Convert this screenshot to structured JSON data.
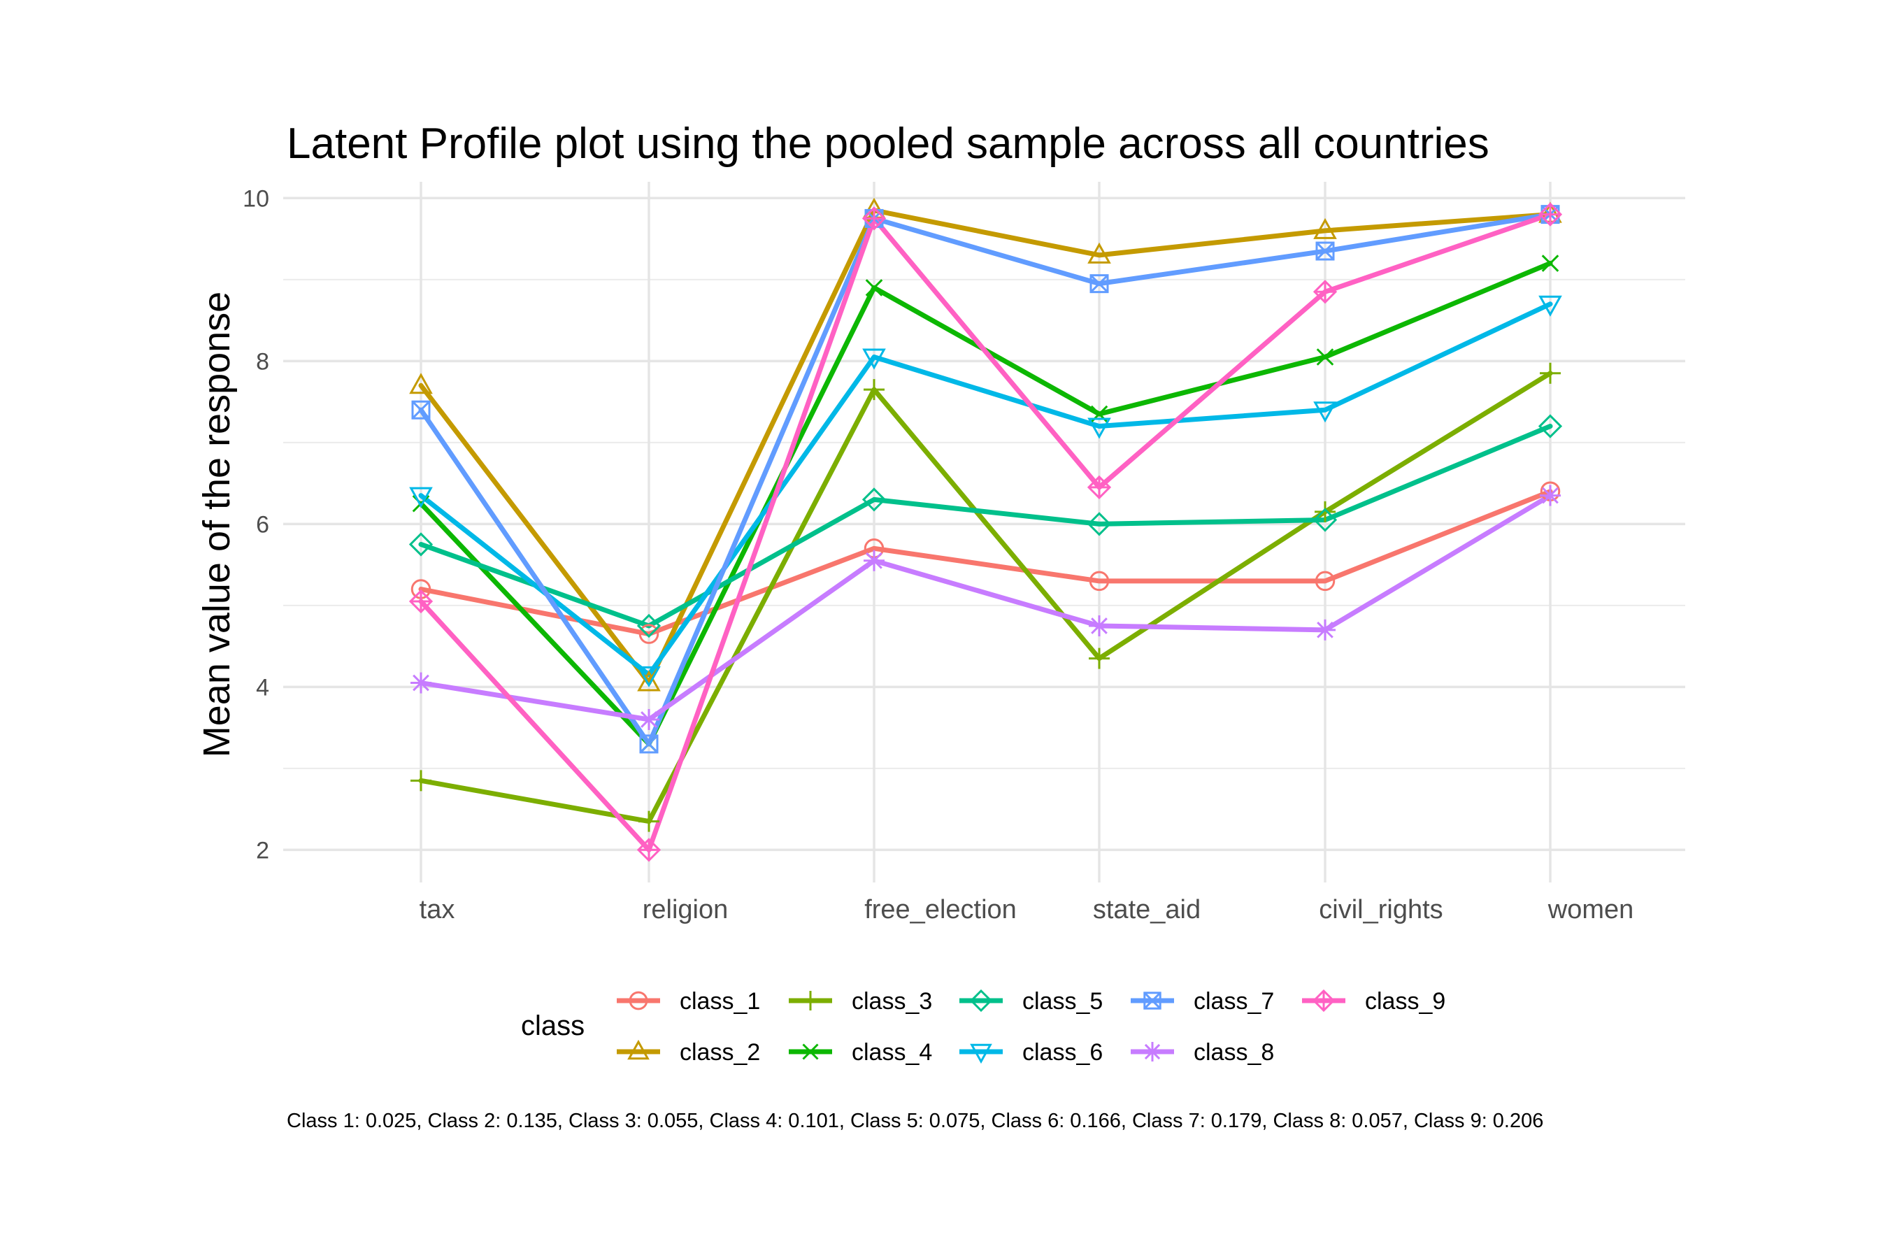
{
  "chart_data": {
    "type": "line",
    "title": "Latent Profile plot using the pooled sample across all countries",
    "xlabel": "",
    "ylabel": "Mean value of the response",
    "categories": [
      "tax",
      "religion",
      "free_election",
      "state_aid",
      "civil_rights",
      "women"
    ],
    "ylim": [
      1.6,
      10.2
    ],
    "yticks": [
      2,
      4,
      6,
      8,
      10
    ],
    "grid": true,
    "legend": {
      "title": "class",
      "position": "bottom"
    },
    "caption": "Class 1: 0.025, Class 2: 0.135, Class 3: 0.055, Class 4: 0.101, Class 5: 0.075, Class 6: 0.166, Class 7: 0.179, Class 8: 0.057, Class 9: 0.206",
    "series": [
      {
        "name": "class_1",
        "color": "#F8766D",
        "marker": "circle",
        "values": [
          5.2,
          4.65,
          5.7,
          5.3,
          5.3,
          6.4
        ]
      },
      {
        "name": "class_2",
        "color": "#C49A00",
        "marker": "triangle",
        "values": [
          7.7,
          4.05,
          9.85,
          9.3,
          9.6,
          9.8
        ]
      },
      {
        "name": "class_3",
        "color": "#7CAE00",
        "marker": "plus",
        "values": [
          2.85,
          2.35,
          7.65,
          4.35,
          6.15,
          7.85
        ]
      },
      {
        "name": "class_4",
        "color": "#0CB702",
        "marker": "cross",
        "values": [
          6.25,
          3.3,
          8.9,
          7.35,
          8.05,
          9.2
        ]
      },
      {
        "name": "class_5",
        "color": "#00C08B",
        "marker": "diamond",
        "values": [
          5.75,
          4.75,
          6.3,
          6.0,
          6.05,
          7.2
        ]
      },
      {
        "name": "class_6",
        "color": "#00B8E7",
        "marker": "triangle-down",
        "values": [
          6.35,
          4.15,
          8.05,
          7.2,
          7.4,
          8.7
        ]
      },
      {
        "name": "class_7",
        "color": "#619CFF",
        "marker": "square-cross",
        "values": [
          7.4,
          3.3,
          9.75,
          8.95,
          9.35,
          9.8
        ]
      },
      {
        "name": "class_8",
        "color": "#C77CFF",
        "marker": "star",
        "values": [
          4.05,
          3.6,
          5.55,
          4.75,
          4.7,
          6.35
        ]
      },
      {
        "name": "class_9",
        "color": "#FF61C3",
        "marker": "diamond-plus",
        "values": [
          5.05,
          2.0,
          9.75,
          6.45,
          8.85,
          9.8
        ]
      }
    ]
  }
}
